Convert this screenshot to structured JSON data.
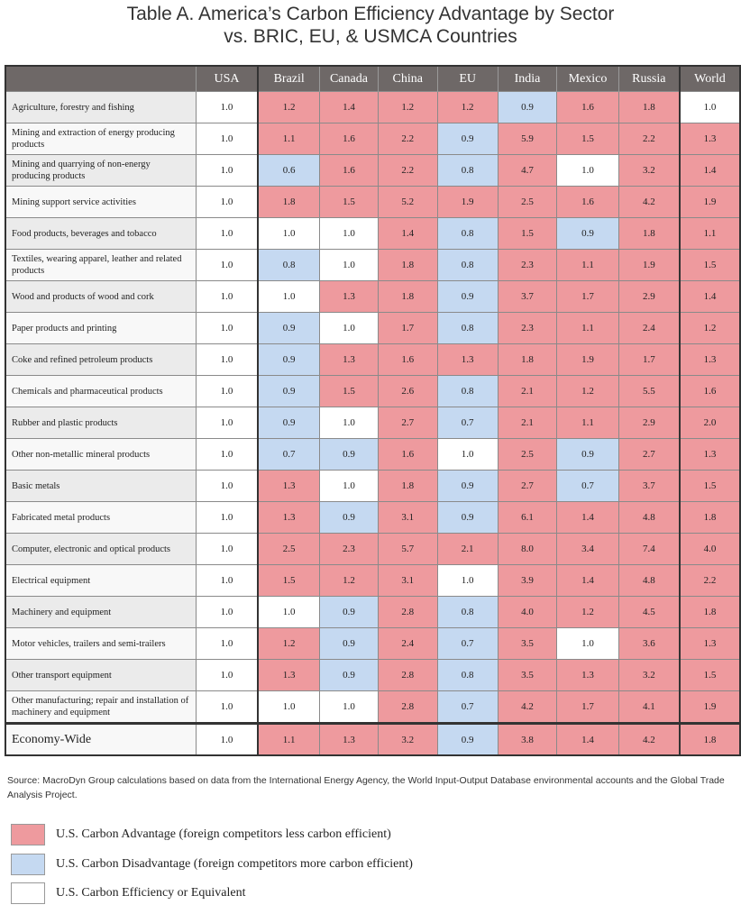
{
  "title_line1": "Table A. America’s Carbon Efficiency Advantage by Sector",
  "title_line2": "vs. BRIC, EU, & USMCA Countries",
  "colors": {
    "advantage": "#ee9a9e",
    "disadvantage": "#c5d9f1",
    "equivalent": "#ffffff",
    "header": "#6e6867"
  },
  "chart_data": {
    "type": "table",
    "columns": [
      "USA",
      "Brazil",
      "Canada",
      "China",
      "EU",
      "India",
      "Mexico",
      "Russia",
      "World"
    ],
    "rows": [
      {
        "label": "Agriculture, forestry and fishing",
        "values": [
          "1.0",
          "1.2",
          "1.4",
          "1.2",
          "1.2",
          "0.9",
          "1.6",
          "1.8",
          "1.0"
        ]
      },
      {
        "label": "Mining and extraction of energy producing products",
        "values": [
          "1.0",
          "1.1",
          "1.6",
          "2.2",
          "0.9",
          "5.9",
          "1.5",
          "2.2",
          "1.3"
        ]
      },
      {
        "label": "Mining and quarrying of non-energy producing products",
        "values": [
          "1.0",
          "0.6",
          "1.6",
          "2.2",
          "0.8",
          "4.7",
          "1.0",
          "3.2",
          "1.4"
        ]
      },
      {
        "label": "Mining support service activities",
        "values": [
          "1.0",
          "1.8",
          "1.5",
          "5.2",
          "1.9",
          "2.5",
          "1.6",
          "4.2",
          "1.9"
        ]
      },
      {
        "label": "Food products, beverages and tobacco",
        "values": [
          "1.0",
          "1.0",
          "1.0",
          "1.4",
          "0.8",
          "1.5",
          "0.9",
          "1.8",
          "1.1"
        ]
      },
      {
        "label": "Textiles, wearing apparel, leather and related products",
        "values": [
          "1.0",
          "0.8",
          "1.0",
          "1.8",
          "0.8",
          "2.3",
          "1.1",
          "1.9",
          "1.5"
        ]
      },
      {
        "label": "Wood and products of wood and cork",
        "values": [
          "1.0",
          "1.0",
          "1.3",
          "1.8",
          "0.9",
          "3.7",
          "1.7",
          "2.9",
          "1.4"
        ]
      },
      {
        "label": "Paper products and printing",
        "values": [
          "1.0",
          "0.9",
          "1.0",
          "1.7",
          "0.8",
          "2.3",
          "1.1",
          "2.4",
          "1.2"
        ]
      },
      {
        "label": "Coke and refined petroleum products",
        "values": [
          "1.0",
          "0.9",
          "1.3",
          "1.6",
          "1.3",
          "1.8",
          "1.9",
          "1.7",
          "1.3"
        ]
      },
      {
        "label": "Chemicals and pharmaceutical products",
        "values": [
          "1.0",
          "0.9",
          "1.5",
          "2.6",
          "0.8",
          "2.1",
          "1.2",
          "5.5",
          "1.6"
        ]
      },
      {
        "label": "Rubber and plastic products",
        "values": [
          "1.0",
          "0.9",
          "1.0",
          "2.7",
          "0.7",
          "2.1",
          "1.1",
          "2.9",
          "2.0"
        ]
      },
      {
        "label": "Other non-metallic mineral products",
        "values": [
          "1.0",
          "0.7",
          "0.9",
          "1.6",
          "1.0",
          "2.5",
          "0.9",
          "2.7",
          "1.3"
        ]
      },
      {
        "label": "Basic metals",
        "values": [
          "1.0",
          "1.3",
          "1.0",
          "1.8",
          "0.9",
          "2.7",
          "0.7",
          "3.7",
          "1.5"
        ]
      },
      {
        "label": "Fabricated metal products",
        "values": [
          "1.0",
          "1.3",
          "0.9",
          "3.1",
          "0.9",
          "6.1",
          "1.4",
          "4.8",
          "1.8"
        ]
      },
      {
        "label": "Computer, electronic and optical products",
        "values": [
          "1.0",
          "2.5",
          "2.3",
          "5.7",
          "2.1",
          "8.0",
          "3.4",
          "7.4",
          "4.0"
        ]
      },
      {
        "label": "Electrical equipment",
        "values": [
          "1.0",
          "1.5",
          "1.2",
          "3.1",
          "1.0",
          "3.9",
          "1.4",
          "4.8",
          "2.2"
        ]
      },
      {
        "label": "Machinery and equipment",
        "values": [
          "1.0",
          "1.0",
          "0.9",
          "2.8",
          "0.8",
          "4.0",
          "1.2",
          "4.5",
          "1.8"
        ]
      },
      {
        "label": "Motor vehicles, trailers and semi-trailers",
        "values": [
          "1.0",
          "1.2",
          "0.9",
          "2.4",
          "0.7",
          "3.5",
          "1.0",
          "3.6",
          "1.3"
        ]
      },
      {
        "label": "Other transport equipment",
        "values": [
          "1.0",
          "1.3",
          "0.9",
          "2.8",
          "0.8",
          "3.5",
          "1.3",
          "3.2",
          "1.5"
        ]
      },
      {
        "label": "Other manufacturing; repair and installation of machinery and equipment",
        "values": [
          "1.0",
          "1.0",
          "1.0",
          "2.8",
          "0.7",
          "4.2",
          "1.7",
          "4.1",
          "1.9"
        ]
      }
    ],
    "total": {
      "label": "Economy-Wide",
      "values": [
        "1.0",
        "1.1",
        "1.3",
        "3.2",
        "0.9",
        "3.8",
        "1.4",
        "4.2",
        "1.8"
      ]
    }
  },
  "source": "Source: MacroDyn Group calculations based on data from the International Energy Agency, the World Input-Output Database environmental accounts and the Global Trade Analysis Project.",
  "legend": [
    {
      "label": "U.S. Carbon Advantage (foreign competitors less carbon efficient)",
      "color": "#ee9a9e"
    },
    {
      "label": "U.S. Carbon Disadvantage (foreign competitors more carbon efficient)",
      "color": "#c5d9f1"
    },
    {
      "label": "U.S. Carbon Efficiency or Equivalent",
      "color": "#ffffff"
    }
  ]
}
